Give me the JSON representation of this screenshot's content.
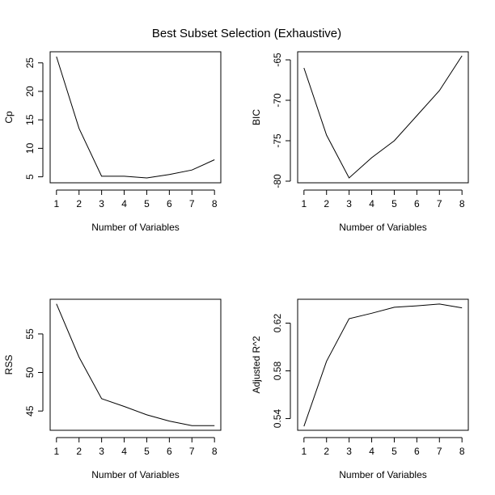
{
  "title": "Best Subset Selection (Exhaustive)",
  "chart_data": [
    {
      "type": "line",
      "xlabel": "Number of Variables",
      "ylabel": "Cp",
      "x": [
        1,
        2,
        3,
        4,
        5,
        6,
        7,
        8
      ],
      "values": [
        26.1,
        13.5,
        5.1,
        5.1,
        4.8,
        5.4,
        6.2,
        8.0
      ],
      "xlim": [
        0.72,
        8.28
      ],
      "ylim": [
        3.95,
        26.95
      ],
      "xticks": [
        1,
        2,
        3,
        4,
        5,
        6,
        7,
        8
      ],
      "yticks": [
        5,
        10,
        15,
        20,
        25
      ],
      "ytick_labels": [
        "5",
        "10",
        "15",
        "20",
        "25"
      ]
    },
    {
      "type": "line",
      "xlabel": "Number of Variables",
      "ylabel": "BIC",
      "x": [
        1,
        2,
        3,
        4,
        5,
        6,
        7,
        8
      ],
      "values": [
        -66.0,
        -74.3,
        -79.6,
        -77.1,
        -75.0,
        -71.9,
        -68.8,
        -64.5
      ],
      "xlim": [
        0.72,
        8.28
      ],
      "ylim": [
        -80.2,
        -64.0
      ],
      "xticks": [
        1,
        2,
        3,
        4,
        5,
        6,
        7,
        8
      ],
      "yticks": [
        -80,
        -75,
        -70,
        -65
      ],
      "ytick_labels": [
        "-80",
        "-75",
        "-70",
        "-65"
      ]
    },
    {
      "type": "line",
      "xlabel": "Number of Variables",
      "ylabel": "RSS",
      "x": [
        1,
        2,
        3,
        4,
        5,
        6,
        7,
        8
      ],
      "values": [
        58.9,
        52.0,
        46.6,
        45.6,
        44.5,
        43.7,
        43.1,
        43.1
      ],
      "xlim": [
        0.72,
        8.28
      ],
      "ylim": [
        42.5,
        59.5
      ],
      "xticks": [
        1,
        2,
        3,
        4,
        5,
        6,
        7,
        8
      ],
      "yticks": [
        45,
        50,
        55
      ],
      "ytick_labels": [
        "45",
        "50",
        "55"
      ]
    },
    {
      "type": "line",
      "xlabel": "Number of Variables",
      "ylabel": "Adjusted R^2",
      "x": [
        1,
        2,
        3,
        4,
        5,
        6,
        7,
        8
      ],
      "values": [
        0.5335,
        0.588,
        0.6237,
        0.6283,
        0.6333,
        0.6345,
        0.636,
        0.6328
      ],
      "xlim": [
        0.72,
        8.28
      ],
      "ylim": [
        0.5302,
        0.64
      ],
      "xticks": [
        1,
        2,
        3,
        4,
        5,
        6,
        7,
        8
      ],
      "yticks": [
        0.54,
        0.58,
        0.62
      ],
      "ytick_labels": [
        "0.54",
        "0.58",
        "0.62"
      ]
    }
  ]
}
